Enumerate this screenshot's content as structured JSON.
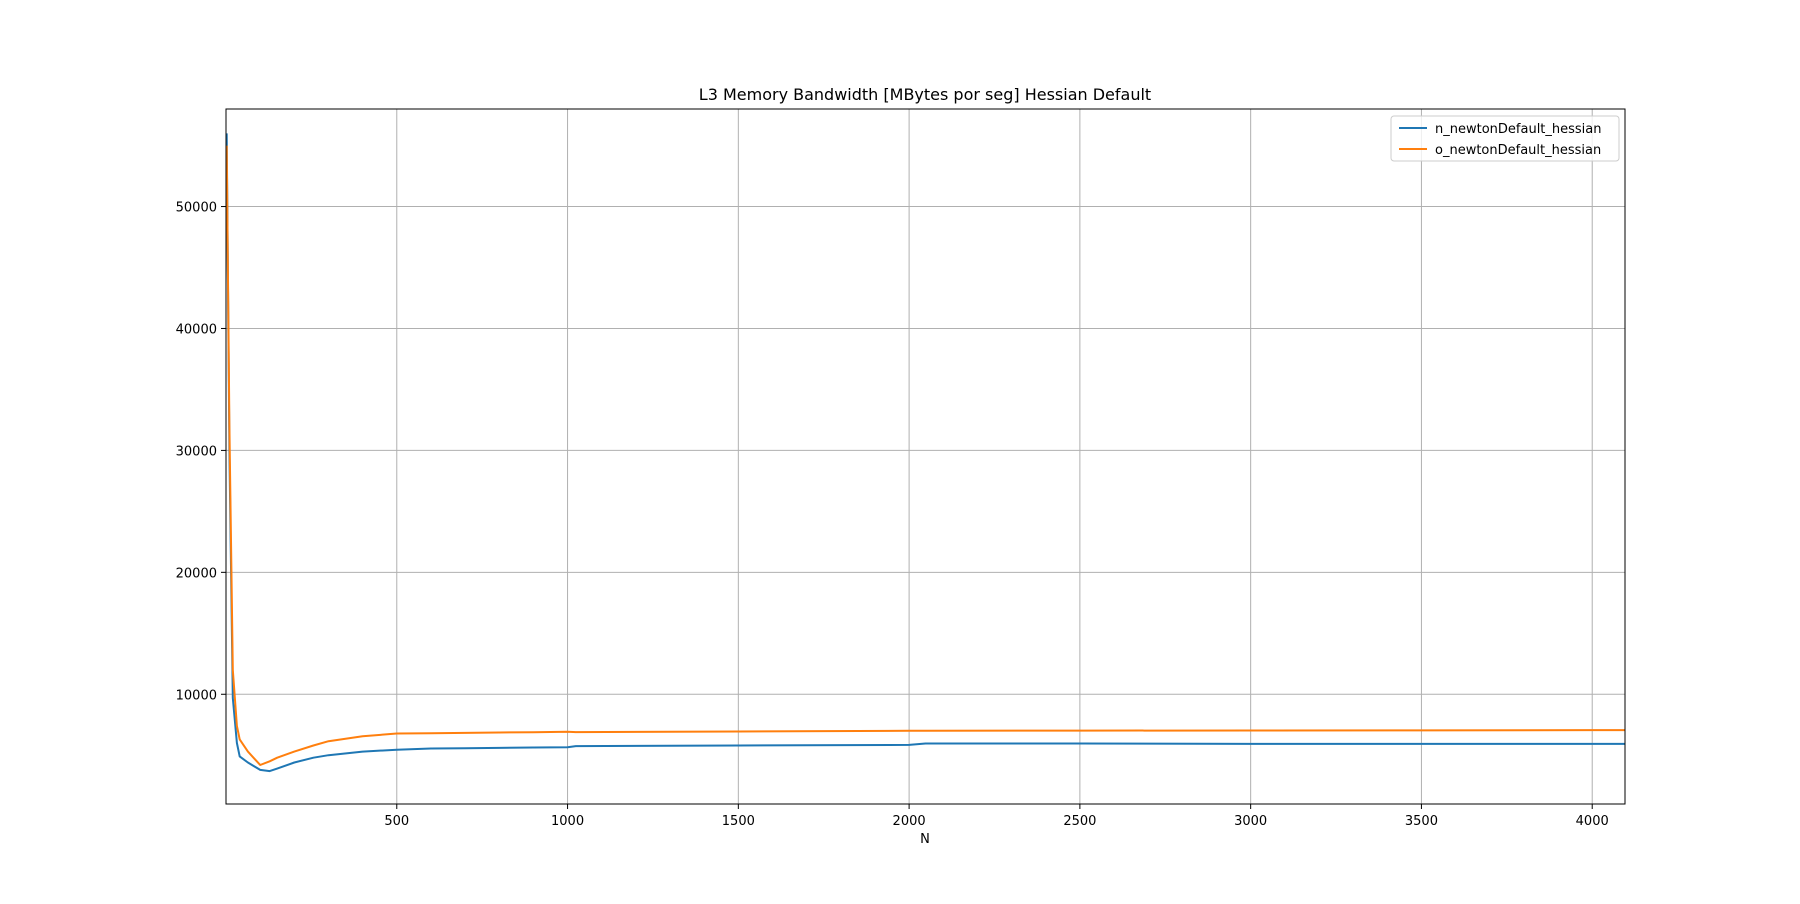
{
  "chart_data": {
    "type": "line",
    "title": "L3 Memory Bandwidth [MBytes por seg] Hessian Default",
    "xlabel": "N",
    "ylabel": "",
    "xlim": [
      0,
      4096
    ],
    "ylim": [
      1000,
      58000
    ],
    "xticks": [
      500,
      1000,
      1500,
      2000,
      2500,
      3000,
      3500,
      4000
    ],
    "yticks": [
      10000,
      20000,
      30000,
      40000,
      50000
    ],
    "grid": true,
    "legend": "top-right",
    "series": [
      {
        "name": "n_newtonDefault_hessian",
        "color": "#1f77b4",
        "x": [
          2,
          10,
          20,
          32,
          40,
          64,
          100,
          128,
          150,
          200,
          256,
          300,
          400,
          500,
          600,
          700,
          800,
          900,
          1000,
          1024,
          1500,
          2000,
          2048,
          2500,
          3000,
          3500,
          4000,
          4096
        ],
        "y": [
          56000,
          30000,
          9700,
          6000,
          4900,
          4400,
          3800,
          3700,
          3900,
          4400,
          4800,
          5000,
          5300,
          5450,
          5550,
          5580,
          5600,
          5630,
          5650,
          5750,
          5800,
          5850,
          5960,
          5960,
          5930,
          5930,
          5930,
          5930
        ]
      },
      {
        "name": "o_newtonDefault_hessian",
        "color": "#ff7f0e",
        "x": [
          2,
          10,
          20,
          32,
          40,
          64,
          100,
          128,
          150,
          200,
          256,
          300,
          400,
          500,
          600,
          700,
          800,
          900,
          1000,
          1024,
          1500,
          2000,
          2048,
          2500,
          3000,
          3500,
          4000,
          4096
        ],
        "y": [
          55000,
          32000,
          12000,
          7400,
          6300,
          5300,
          4200,
          4500,
          4800,
          5300,
          5800,
          6150,
          6550,
          6780,
          6800,
          6830,
          6860,
          6890,
          6920,
          6900,
          6950,
          7000,
          7010,
          7020,
          7030,
          7040,
          7060,
          7060
        ]
      }
    ]
  }
}
